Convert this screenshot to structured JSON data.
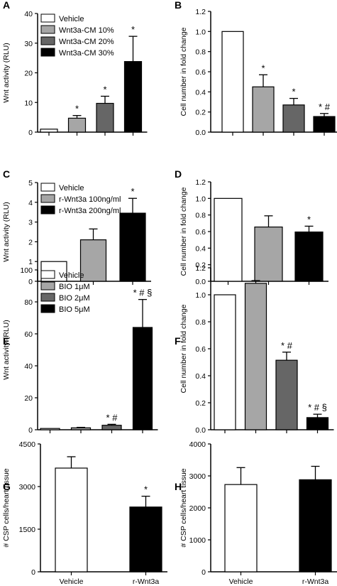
{
  "chart_data": [
    {
      "panel_label": "A",
      "type": "bar",
      "categories": [
        "Vehicle",
        "Wnt3a-CM 10%",
        "Wnt3a-CM 20%",
        "Wnt3a-CM 30%"
      ],
      "values": [
        1,
        4.7,
        9.7,
        23.8
      ],
      "errors": [
        0,
        0.9,
        2.4,
        8.5
      ],
      "fills": [
        "#ffffff",
        "#a6a6a6",
        "#666666",
        "#000000"
      ],
      "sig": [
        "",
        "*",
        "*",
        "*"
      ],
      "ylabel": "Wnt activity (RLU)",
      "ylim": [
        0,
        40
      ],
      "yticks": [
        0,
        10,
        20,
        30,
        40
      ],
      "ytick_labels": [
        "0",
        "10",
        "20",
        "30",
        "40"
      ],
      "xtick_labels": [],
      "legend": [
        "Vehicle",
        "Wnt3a-CM 10%",
        "Wnt3a-CM 20%",
        "Wnt3a-CM 30%"
      ],
      "legend_position": "top-left",
      "grid": false
    },
    {
      "panel_label": "B",
      "type": "bar",
      "categories": [
        "Vehicle",
        "Wnt3a-CM 10%",
        "Wnt3a-CM 20%",
        "Wnt3a-CM 30%"
      ],
      "values": [
        1.0,
        0.45,
        0.27,
        0.155
      ],
      "errors": [
        0,
        0.12,
        0.065,
        0.03
      ],
      "fills": [
        "#ffffff",
        "#a6a6a6",
        "#666666",
        "#000000"
      ],
      "sig": [
        "",
        "*",
        "*",
        "* #"
      ],
      "ylabel": "Cell number in fold change",
      "ylim": [
        0,
        1.2
      ],
      "yticks": [
        0,
        0.2,
        0.4,
        0.6,
        0.8,
        1.0,
        1.2
      ],
      "ytick_labels": [
        "0.0",
        "0.2",
        "0.4",
        "0.6",
        "0.8",
        "1.0",
        "1.2"
      ],
      "xtick_labels": [],
      "legend": [],
      "grid": false
    },
    {
      "panel_label": "C",
      "type": "bar",
      "categories": [
        "Vehicle",
        "r-Wnt3a 100ng/ml",
        "r-Wnt3a 200ng/ml"
      ],
      "values": [
        1.0,
        2.1,
        3.45
      ],
      "errors": [
        0,
        0.55,
        0.75
      ],
      "fills": [
        "#ffffff",
        "#a6a6a6",
        "#000000"
      ],
      "sig": [
        "",
        "",
        "*"
      ],
      "ylabel": "Wnt activity (RLU)",
      "ylim": [
        0,
        5
      ],
      "yticks": [
        0,
        1,
        2,
        3,
        4,
        5
      ],
      "ytick_labels": [
        "0",
        "1",
        "2",
        "3",
        "4",
        "5"
      ],
      "xtick_labels": [],
      "legend": [
        "Vehicle",
        "r-Wnt3a 100ng/ml",
        "r-Wnt3a 200ng/ml"
      ],
      "legend_position": "top-left",
      "grid": false
    },
    {
      "panel_label": "D",
      "type": "bar",
      "categories": [
        "Vehicle",
        "r-Wnt3a 100ng/ml",
        "r-Wnt3a 200ng/ml"
      ],
      "values": [
        1.0,
        0.655,
        0.595
      ],
      "errors": [
        0,
        0.135,
        0.07
      ],
      "fills": [
        "#ffffff",
        "#a6a6a6",
        "#000000"
      ],
      "sig": [
        "",
        "",
        "*"
      ],
      "ylabel": "Cell number in fold change",
      "ylim": [
        0,
        1.2
      ],
      "yticks": [
        0,
        0.2,
        0.4,
        0.6,
        0.8,
        1.0,
        1.2
      ],
      "ytick_labels": [
        "0.0",
        "0.2",
        "0.4",
        "0.6",
        "0.8",
        "1.0",
        "1.2"
      ],
      "xtick_labels": [],
      "legend": [],
      "grid": false
    },
    {
      "panel_label": "E",
      "type": "bar",
      "categories": [
        "Vehicle",
        "BIO 1μM",
        "BIO 2μM",
        "BIO 5μM"
      ],
      "values": [
        0.8,
        1.2,
        2.8,
        64
      ],
      "errors": [
        0,
        0.3,
        0.6,
        17.5
      ],
      "fills": [
        "#ffffff",
        "#a6a6a6",
        "#666666",
        "#000000"
      ],
      "sig": [
        "",
        "",
        "* #",
        "* # §"
      ],
      "ylabel": "Wnt activity (RLU)",
      "ylim": [
        0,
        100
      ],
      "yticks": [
        0,
        20,
        40,
        60,
        80,
        100
      ],
      "ytick_labels": [
        "0",
        "20",
        "40",
        "60",
        "80",
        "100"
      ],
      "xtick_labels": [],
      "legend": [
        "Vehicle",
        "BIO 1μM",
        "BIO 2μM",
        "BIO 5μM"
      ],
      "legend_position": "top-left",
      "grid": false
    },
    {
      "panel_label": "F",
      "type": "bar",
      "categories": [
        "Vehicle",
        "BIO 1μM",
        "BIO 2μM",
        "BIO 5μM"
      ],
      "values": [
        1.0,
        1.085,
        0.515,
        0.09
      ],
      "errors": [
        0,
        0.02,
        0.06,
        0.025
      ],
      "fills": [
        "#ffffff",
        "#a6a6a6",
        "#666666",
        "#000000"
      ],
      "sig": [
        "",
        "",
        "* #",
        "* # §"
      ],
      "ylabel": "Cell number in fold change",
      "ylim": [
        0,
        1.2
      ],
      "yticks": [
        0,
        0.2,
        0.4,
        0.6,
        0.8,
        1.0,
        1.2
      ],
      "ytick_labels": [
        "0.0",
        "0.2",
        "0.4",
        "0.6",
        "0.8",
        "1.0",
        "1.2"
      ],
      "xtick_labels": [],
      "legend": [],
      "grid": false
    },
    {
      "panel_label": "G",
      "type": "bar",
      "categories": [
        "Vehicle",
        "r-Wnt3a"
      ],
      "values": [
        3650,
        2280
      ],
      "errors": [
        400,
        380
      ],
      "fills": [
        "#ffffff",
        "#000000"
      ],
      "sig": [
        "",
        "*"
      ],
      "ylabel": "# CSP cells/heart tissue",
      "ylim": [
        0,
        4500
      ],
      "yticks": [
        0,
        1500,
        3000,
        4500
      ],
      "ytick_labels": [
        "0",
        "1500",
        "3000",
        "4500"
      ],
      "xtick_labels": [
        "Vehicle",
        "r-Wnt3a"
      ],
      "legend": [],
      "grid": false
    },
    {
      "panel_label": "H",
      "type": "bar",
      "categories": [
        "Vehicle",
        "r-Wnt3a"
      ],
      "values": [
        2730,
        2880
      ],
      "errors": [
        530,
        420
      ],
      "fills": [
        "#ffffff",
        "#000000"
      ],
      "sig": [
        "",
        ""
      ],
      "ylabel": "# CSP cells/heart tissue",
      "ylim": [
        0,
        4000
      ],
      "yticks": [
        0,
        1000,
        2000,
        3000,
        4000
      ],
      "ytick_labels": [
        "0",
        "1000",
        "2000",
        "3000",
        "4000"
      ],
      "xtick_labels": [
        "Vehicle",
        "r-Wnt3a"
      ],
      "legend": [],
      "grid": false
    }
  ]
}
